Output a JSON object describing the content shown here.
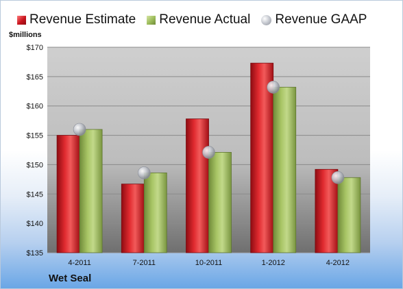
{
  "chart_data": {
    "type": "bar",
    "title": "",
    "xlabel": "",
    "ylabel": "$millions",
    "company": "Wet Seal",
    "categories": [
      "4-2011",
      "7-2011",
      "10-2011",
      "1-2012",
      "4-2012"
    ],
    "series": [
      {
        "name": "Revenue Estimate",
        "kind": "bar",
        "color": "#c8141e",
        "values": [
          155.0,
          146.7,
          157.8,
          167.3,
          149.2
        ]
      },
      {
        "name": "Revenue Actual",
        "kind": "bar",
        "color": "#9bbb59",
        "values": [
          156.0,
          148.6,
          152.1,
          163.2,
          147.8
        ]
      },
      {
        "name": "Revenue GAAP",
        "kind": "marker",
        "color": "#c9ccd3",
        "values": [
          156.0,
          148.6,
          152.1,
          163.2,
          147.8
        ]
      }
    ],
    "ylim": [
      135,
      170
    ],
    "y_ticks": [
      "$135",
      "$140",
      "$145",
      "$150",
      "$155",
      "$160",
      "$165",
      "$170"
    ],
    "grid": true,
    "legend_position": "top"
  }
}
